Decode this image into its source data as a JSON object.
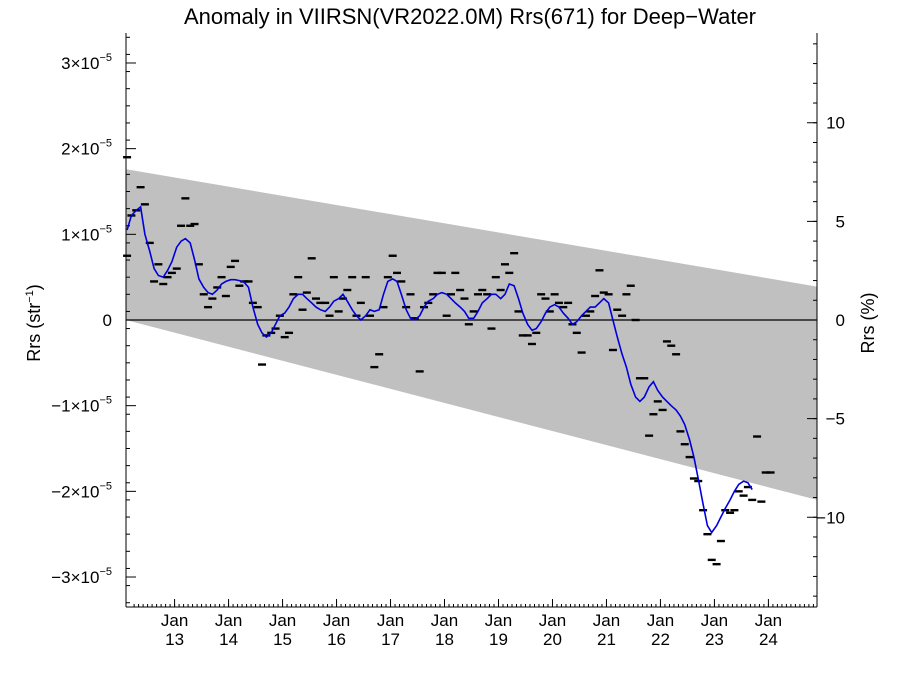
{
  "chart_data": {
    "type": "scatter",
    "title": "Anomaly in VIIRSN(VR2022.0M) Rrs(671) for Deep−Water",
    "ylabel_left": {
      "base": "Rrs (str",
      "sup": "−1",
      "close": ")"
    },
    "ylabel_right": "Rrs (%)",
    "xlabel": "",
    "xlim": [
      2012.1,
      2024.9
    ],
    "ylim_left": [
      -3.35e-05,
      3.35e-05
    ],
    "ylim_right": [
      -14.55,
      14.55
    ],
    "grid": false,
    "left_ticks": [
      {
        "value": 3e-05,
        "coef": "3×10",
        "exp": "−5"
      },
      {
        "value": 2e-05,
        "coef": "2×10",
        "exp": "−5"
      },
      {
        "value": 1e-05,
        "coef": "1×10",
        "exp": "−5"
      },
      {
        "value": 0,
        "coef": "0",
        "exp": ""
      },
      {
        "value": -1e-05,
        "coef": "−1×10",
        "exp": "−5"
      },
      {
        "value": -2e-05,
        "coef": "−2×10",
        "exp": "−5"
      },
      {
        "value": -3e-05,
        "coef": "−3×10",
        "exp": "−5"
      }
    ],
    "right_ticks": [
      {
        "value": 10,
        "label": "10"
      },
      {
        "value": 5,
        "label": "5"
      },
      {
        "value": 0,
        "label": "0"
      },
      {
        "value": -5,
        "label": "−5"
      },
      {
        "value": -10,
        "label": "−10"
      }
    ],
    "x_ticks": [
      {
        "value": 2013,
        "month": "Jan",
        "year": "13"
      },
      {
        "value": 2014,
        "month": "Jan",
        "year": "14"
      },
      {
        "value": 2015,
        "month": "Jan",
        "year": "15"
      },
      {
        "value": 2016,
        "month": "Jan",
        "year": "16"
      },
      {
        "value": 2017,
        "month": "Jan",
        "year": "17"
      },
      {
        "value": 2018,
        "month": "Jan",
        "year": "18"
      },
      {
        "value": 2019,
        "month": "Jan",
        "year": "19"
      },
      {
        "value": 2020,
        "month": "Jan",
        "year": "20"
      },
      {
        "value": 2021,
        "month": "Jan",
        "year": "21"
      },
      {
        "value": 2022,
        "month": "Jan",
        "year": "22"
      },
      {
        "value": 2023,
        "month": "Jan",
        "year": "23"
      },
      {
        "value": 2024,
        "month": "Jan",
        "year": "24"
      }
    ],
    "envelope": {
      "upper": [
        [
          2012.1,
          1.76e-05
        ],
        [
          2024.9,
          3.9e-06
        ]
      ],
      "lower": [
        [
          2012.1,
          0.0
        ],
        [
          2024.9,
          -2.1e-05
        ]
      ],
      "color": "#c0c0c0"
    },
    "zero_line": 0,
    "colors": {
      "points": "#000000",
      "smooth": "#0000dd",
      "envelope": "#c0c0c0"
    },
    "points": [
      [
        2012.12,
        1.9e-05
      ],
      [
        2012.12,
        7.5e-06
      ],
      [
        2012.2,
        1.22e-05
      ],
      [
        2012.29,
        1.28e-05
      ],
      [
        2012.37,
        1.55e-05
      ],
      [
        2012.45,
        1.35e-05
      ],
      [
        2012.54,
        9e-06
      ],
      [
        2012.62,
        4.5e-06
      ],
      [
        2012.7,
        6.5e-06
      ],
      [
        2012.79,
        4.2e-06
      ],
      [
        2012.87,
        5e-06
      ],
      [
        2012.95,
        5.5e-06
      ],
      [
        2013.04,
        6e-06
      ],
      [
        2013.12,
        1.1e-05
      ],
      [
        2013.2,
        1.42e-05
      ],
      [
        2013.29,
        1.1e-05
      ],
      [
        2013.37,
        1.12e-05
      ],
      [
        2013.45,
        6.5e-06
      ],
      [
        2013.54,
        3e-06
      ],
      [
        2013.62,
        1.5e-06
      ],
      [
        2013.7,
        2.5e-06
      ],
      [
        2013.79,
        3.8e-06
      ],
      [
        2013.87,
        5e-06
      ],
      [
        2013.95,
        2.8e-06
      ],
      [
        2014.04,
        6.2e-06
      ],
      [
        2014.12,
        6.9e-06
      ],
      [
        2014.2,
        4e-06
      ],
      [
        2014.29,
        4.5e-06
      ],
      [
        2014.37,
        4.5e-06
      ],
      [
        2014.45,
        2e-06
      ],
      [
        2014.54,
        1.5e-06
      ],
      [
        2014.62,
        -5.2e-06
      ],
      [
        2014.7,
        -1.8e-06
      ],
      [
        2014.79,
        -1.5e-06
      ],
      [
        2014.87,
        -1e-06
      ],
      [
        2014.95,
        5e-07
      ],
      [
        2015.04,
        -2e-06
      ],
      [
        2015.12,
        -1.5e-06
      ],
      [
        2015.2,
        3e-06
      ],
      [
        2015.29,
        5e-06
      ],
      [
        2015.37,
        1.2e-06
      ],
      [
        2015.45,
        3.2e-06
      ],
      [
        2015.54,
        7.2e-06
      ],
      [
        2015.62,
        2.5e-06
      ],
      [
        2015.7,
        2e-06
      ],
      [
        2015.79,
        2e-06
      ],
      [
        2015.87,
        5e-07
      ],
      [
        2015.95,
        5e-06
      ],
      [
        2016.04,
        1e-06
      ],
      [
        2016.12,
        2.5e-06
      ],
      [
        2016.2,
        3.5e-06
      ],
      [
        2016.29,
        5e-06
      ],
      [
        2016.37,
        5e-07
      ],
      [
        2016.45,
        2e-06
      ],
      [
        2016.54,
        5e-06
      ],
      [
        2016.62,
        5e-07
      ],
      [
        2016.7,
        -5.5e-06
      ],
      [
        2016.79,
        -4e-06
      ],
      [
        2016.87,
        1.5e-06
      ],
      [
        2016.95,
        5e-06
      ],
      [
        2017.04,
        7.5e-06
      ],
      [
        2017.12,
        5.5e-06
      ],
      [
        2017.2,
        4.5e-06
      ],
      [
        2017.29,
        1.5e-06
      ],
      [
        2017.37,
        3e-06
      ],
      [
        2017.45,
        2e-07
      ],
      [
        2017.54,
        -6e-06
      ],
      [
        2017.62,
        1.5e-06
      ],
      [
        2017.7,
        2e-06
      ],
      [
        2017.79,
        3e-06
      ],
      [
        2017.87,
        5.5e-06
      ],
      [
        2017.95,
        5.5e-06
      ],
      [
        2018.04,
        5e-07
      ],
      [
        2018.12,
        3e-06
      ],
      [
        2018.2,
        5.5e-06
      ],
      [
        2018.29,
        3.5e-06
      ],
      [
        2018.37,
        2.5e-06
      ],
      [
        2018.45,
        -5e-07
      ],
      [
        2018.54,
        1e-06
      ],
      [
        2018.62,
        3e-06
      ],
      [
        2018.7,
        3.5e-06
      ],
      [
        2018.79,
        3e-06
      ],
      [
        2018.87,
        -1e-06
      ],
      [
        2018.95,
        5e-06
      ],
      [
        2019.04,
        3.5e-06
      ],
      [
        2019.12,
        6.5e-06
      ],
      [
        2019.2,
        5.5e-06
      ],
      [
        2019.29,
        7.8e-06
      ],
      [
        2019.37,
        1e-06
      ],
      [
        2019.45,
        -1.8e-06
      ],
      [
        2019.54,
        -1.8e-06
      ],
      [
        2019.62,
        -2.8e-06
      ],
      [
        2019.7,
        -1.5e-06
      ],
      [
        2019.79,
        3e-06
      ],
      [
        2019.87,
        2.5e-06
      ],
      [
        2019.95,
        1e-06
      ],
      [
        2020.04,
        3e-06
      ],
      [
        2020.12,
        2e-06
      ],
      [
        2020.2,
        1.5e-06
      ],
      [
        2020.29,
        2e-06
      ],
      [
        2020.37,
        -5e-07
      ],
      [
        2020.45,
        -1.5e-06
      ],
      [
        2020.54,
        -3.8e-06
      ],
      [
        2020.62,
        5e-07
      ],
      [
        2020.7,
        1e-06
      ],
      [
        2020.79,
        2.8e-06
      ],
      [
        2020.87,
        5.8e-06
      ],
      [
        2020.95,
        3.2e-06
      ],
      [
        2021.04,
        3e-06
      ],
      [
        2021.12,
        -3.5e-06
      ],
      [
        2021.2,
        1.2e-06
      ],
      [
        2021.29,
        5e-07
      ],
      [
        2021.37,
        3e-06
      ],
      [
        2021.45,
        4e-06
      ],
      [
        2021.54,
        -0.0
      ],
      [
        2021.62,
        -6.8e-06
      ],
      [
        2021.7,
        -6.8e-06
      ],
      [
        2021.79,
        -1.35e-05
      ],
      [
        2021.87,
        -1.1e-05
      ],
      [
        2021.95,
        -9.5e-06
      ],
      [
        2022.04,
        -1.05e-05
      ],
      [
        2022.12,
        -2.5e-06
      ],
      [
        2022.2,
        -3e-06
      ],
      [
        2022.29,
        -4e-06
      ],
      [
        2022.37,
        -1.3e-05
      ],
      [
        2022.45,
        -1.45e-05
      ],
      [
        2022.54,
        -1.6e-05
      ],
      [
        2022.62,
        -1.85e-05
      ],
      [
        2022.7,
        -1.88e-05
      ],
      [
        2022.79,
        -2.22e-05
      ],
      [
        2022.87,
        -2.5e-05
      ],
      [
        2022.95,
        -2.8e-05
      ],
      [
        2023.04,
        -2.85e-05
      ],
      [
        2023.12,
        -2.58e-05
      ],
      [
        2023.2,
        -2.22e-05
      ],
      [
        2023.29,
        -2.25e-05
      ],
      [
        2023.37,
        -2.22e-05
      ],
      [
        2023.45,
        -2e-05
      ],
      [
        2023.54,
        -2.05e-05
      ],
      [
        2023.62,
        -1.95e-05
      ],
      [
        2023.7,
        -2.1e-05
      ],
      [
        2023.79,
        -1.36e-05
      ],
      [
        2023.87,
        -2.12e-05
      ],
      [
        2023.95,
        -1.78e-05
      ],
      [
        2024.04,
        -1.78e-05
      ]
    ],
    "smooth": [
      [
        2012.12,
        1.05e-05
      ],
      [
        2012.2,
        1.22e-05
      ],
      [
        2012.29,
        1.28e-05
      ],
      [
        2012.37,
        1.32e-05
      ],
      [
        2012.45,
        1e-05
      ],
      [
        2012.54,
        8e-06
      ],
      [
        2012.62,
        6e-06
      ],
      [
        2012.7,
        5.2e-06
      ],
      [
        2012.79,
        5e-06
      ],
      [
        2012.87,
        5.8e-06
      ],
      [
        2012.95,
        6.8e-06
      ],
      [
        2013.04,
        8.5e-06
      ],
      [
        2013.12,
        9.2e-06
      ],
      [
        2013.2,
        9.5e-06
      ],
      [
        2013.29,
        9e-06
      ],
      [
        2013.37,
        7e-06
      ],
      [
        2013.45,
        4.8e-06
      ],
      [
        2013.54,
        3.8e-06
      ],
      [
        2013.62,
        3.2e-06
      ],
      [
        2013.7,
        3e-06
      ],
      [
        2013.79,
        3.5e-06
      ],
      [
        2013.87,
        4.2e-06
      ],
      [
        2013.95,
        4.5e-06
      ],
      [
        2014.04,
        4.7e-06
      ],
      [
        2014.12,
        4.7e-06
      ],
      [
        2014.2,
        4.6e-06
      ],
      [
        2014.29,
        4.4e-06
      ],
      [
        2014.37,
        3.8e-06
      ],
      [
        2014.45,
        1.5e-06
      ],
      [
        2014.54,
        -5e-07
      ],
      [
        2014.62,
        -1.5e-06
      ],
      [
        2014.7,
        -2e-06
      ],
      [
        2014.79,
        -1.5e-06
      ],
      [
        2014.87,
        -5e-07
      ],
      [
        2014.95,
        5e-07
      ],
      [
        2015.04,
        8e-07
      ],
      [
        2015.12,
        1.5e-06
      ],
      [
        2015.2,
        2.5e-06
      ],
      [
        2015.29,
        3e-06
      ],
      [
        2015.37,
        3e-06
      ],
      [
        2015.45,
        2.5e-06
      ],
      [
        2015.54,
        2e-06
      ],
      [
        2015.62,
        1.5e-06
      ],
      [
        2015.7,
        1.2e-06
      ],
      [
        2015.79,
        1e-06
      ],
      [
        2015.87,
        1.5e-06
      ],
      [
        2015.95,
        2.2e-06
      ],
      [
        2016.04,
        2.5e-06
      ],
      [
        2016.12,
        3e-06
      ],
      [
        2016.2,
        2.2e-06
      ],
      [
        2016.29,
        1.2e-06
      ],
      [
        2016.37,
        5e-07
      ],
      [
        2016.45,
        0.0
      ],
      [
        2016.54,
        5e-07
      ],
      [
        2016.62,
        1.2e-06
      ],
      [
        2016.7,
        1e-06
      ],
      [
        2016.79,
        1.2e-06
      ],
      [
        2016.87,
        3e-06
      ],
      [
        2016.95,
        4.5e-06
      ],
      [
        2017.04,
        4.8e-06
      ],
      [
        2017.12,
        4.5e-06
      ],
      [
        2017.2,
        3e-06
      ],
      [
        2017.29,
        1.2e-06
      ],
      [
        2017.37,
        2e-07
      ],
      [
        2017.45,
        0.0
      ],
      [
        2017.54,
        5e-07
      ],
      [
        2017.62,
        1.5e-06
      ],
      [
        2017.7,
        2.2e-06
      ],
      [
        2017.79,
        2.5e-06
      ],
      [
        2017.87,
        3e-06
      ],
      [
        2017.95,
        3.2e-06
      ],
      [
        2018.04,
        3e-06
      ],
      [
        2018.12,
        2.5e-06
      ],
      [
        2018.2,
        2e-06
      ],
      [
        2018.29,
        1.5e-06
      ],
      [
        2018.37,
        1e-06
      ],
      [
        2018.45,
        2e-07
      ],
      [
        2018.54,
        2e-07
      ],
      [
        2018.62,
        1e-06
      ],
      [
        2018.7,
        2e-06
      ],
      [
        2018.79,
        2.5e-06
      ],
      [
        2018.87,
        3e-06
      ],
      [
        2018.95,
        3e-06
      ],
      [
        2019.04,
        2.5e-06
      ],
      [
        2019.12,
        3e-06
      ],
      [
        2019.2,
        4.2e-06
      ],
      [
        2019.29,
        4e-06
      ],
      [
        2019.37,
        2.5e-06
      ],
      [
        2019.45,
        8e-07
      ],
      [
        2019.54,
        -5e-07
      ],
      [
        2019.62,
        -1.2e-06
      ],
      [
        2019.7,
        -1e-06
      ],
      [
        2019.79,
        -2e-07
      ],
      [
        2019.87,
        8e-07
      ],
      [
        2019.95,
        1.5e-06
      ],
      [
        2020.04,
        1.8e-06
      ],
      [
        2020.12,
        1.5e-06
      ],
      [
        2020.2,
        8e-07
      ],
      [
        2020.29,
        2e-07
      ],
      [
        2020.37,
        -5e-07
      ],
      [
        2020.45,
        -2e-07
      ],
      [
        2020.54,
        5e-07
      ],
      [
        2020.62,
        1e-06
      ],
      [
        2020.7,
        1.5e-06
      ],
      [
        2020.79,
        1.5e-06
      ],
      [
        2020.87,
        2e-06
      ],
      [
        2020.95,
        2.5e-06
      ],
      [
        2021.04,
        2e-06
      ],
      [
        2021.12,
        0.0
      ],
      [
        2021.2,
        -2e-06
      ],
      [
        2021.29,
        -4e-06
      ],
      [
        2021.37,
        -5.5e-06
      ],
      [
        2021.45,
        -7.5e-06
      ],
      [
        2021.54,
        -9e-06
      ],
      [
        2021.62,
        -9.5e-06
      ],
      [
        2021.7,
        -9e-06
      ],
      [
        2021.79,
        -7.8e-06
      ],
      [
        2021.87,
        -7.2e-06
      ],
      [
        2021.95,
        -8.2e-06
      ],
      [
        2022.04,
        -9e-06
      ],
      [
        2022.12,
        -9.5e-06
      ],
      [
        2022.2,
        -1e-05
      ],
      [
        2022.29,
        -1.05e-05
      ],
      [
        2022.37,
        -1.12e-05
      ],
      [
        2022.45,
        -1.22e-05
      ],
      [
        2022.54,
        -1.4e-05
      ],
      [
        2022.62,
        -1.6e-05
      ],
      [
        2022.7,
        -1.85e-05
      ],
      [
        2022.79,
        -2.15e-05
      ],
      [
        2022.87,
        -2.4e-05
      ],
      [
        2022.95,
        -2.48e-05
      ],
      [
        2023.04,
        -2.4e-05
      ],
      [
        2023.12,
        -2.3e-05
      ],
      [
        2023.2,
        -2.2e-05
      ],
      [
        2023.29,
        -2.1e-05
      ],
      [
        2023.37,
        -2e-05
      ],
      [
        2023.45,
        -1.92e-05
      ],
      [
        2023.54,
        -1.88e-05
      ],
      [
        2023.62,
        -1.9e-05
      ],
      [
        2023.7,
        -1.98e-05
      ]
    ]
  }
}
